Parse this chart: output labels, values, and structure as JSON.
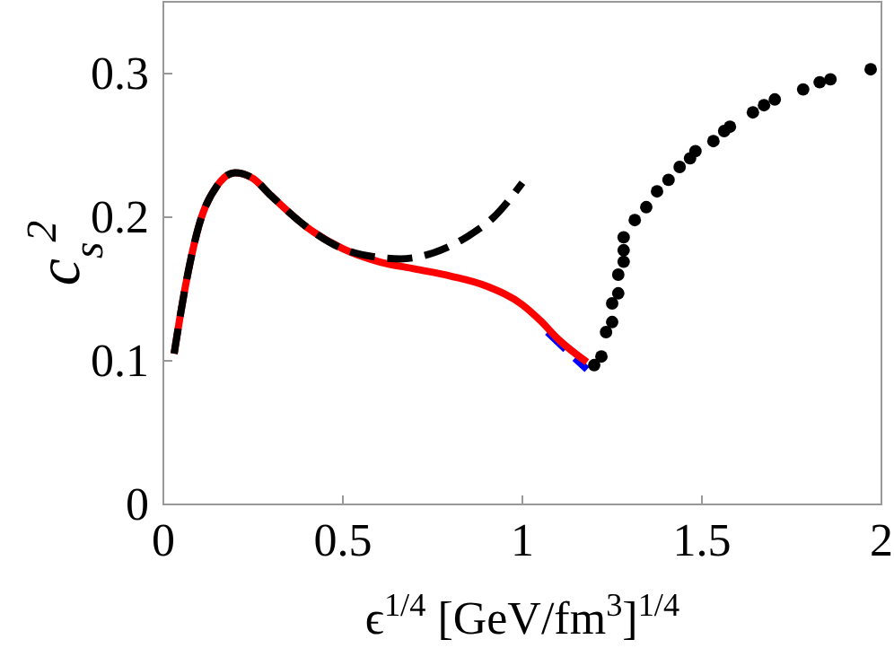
{
  "chart_data": {
    "type": "line",
    "xlabel": "ϵ$^{1/4}$ [GeV/fm$^{3}$]$^{1/4}$",
    "ylabel": "c$_{s}$$^{2}$",
    "xlim": [
      0,
      2
    ],
    "ylim": [
      0,
      0.35
    ],
    "xticks": [
      0,
      0.5,
      1,
      1.5,
      2
    ],
    "yticks": [
      0,
      0.1,
      0.2,
      0.3
    ],
    "grid": false,
    "series": [
      {
        "type": "line",
        "color": "#0000ff",
        "line_style": "dashed",
        "x": [
          1.07,
          1.12,
          1.18
        ],
        "values": [
          0.12,
          0.108,
          0.094
        ]
      },
      {
        "color": "#ff0000",
        "line_style": "solid",
        "x": [
          0.03,
          0.06,
          0.1,
          0.15,
          0.2,
          0.25,
          0.3,
          0.4,
          0.5,
          0.6,
          0.7,
          0.8,
          0.9,
          1.0,
          1.05,
          1.1,
          1.18
        ],
        "values": [
          0.105,
          0.15,
          0.195,
          0.222,
          0.231,
          0.227,
          0.215,
          0.193,
          0.178,
          0.169,
          0.164,
          0.159,
          0.152,
          0.139,
          0.128,
          0.115,
          0.099
        ]
      },
      {
        "type": "line",
        "color": "#000000",
        "line_style": "dashed",
        "x": [
          0.03,
          0.06,
          0.1,
          0.15,
          0.2,
          0.25,
          0.3,
          0.4,
          0.5,
          0.6,
          0.66,
          0.75,
          0.85,
          0.92,
          1.0
        ],
        "values": [
          0.105,
          0.15,
          0.195,
          0.222,
          0.231,
          0.227,
          0.215,
          0.193,
          0.178,
          0.172,
          0.171,
          0.175,
          0.187,
          0.2,
          0.224
        ]
      },
      {
        "type": "scatter",
        "color": "#000000",
        "marker": "circle",
        "x": [
          1.2,
          1.22,
          1.233,
          1.25,
          1.25,
          1.267,
          1.267,
          1.282,
          1.282,
          1.282,
          1.313,
          1.345,
          1.375,
          1.407,
          1.438,
          1.467,
          1.482,
          1.532,
          1.562,
          1.578,
          1.642,
          1.673,
          1.703,
          1.782,
          1.828,
          1.858,
          1.97
        ],
        "values": [
          0.097,
          0.103,
          0.12,
          0.127,
          0.14,
          0.147,
          0.16,
          0.169,
          0.177,
          0.186,
          0.198,
          0.207,
          0.218,
          0.226,
          0.235,
          0.241,
          0.246,
          0.253,
          0.26,
          0.263,
          0.273,
          0.278,
          0.282,
          0.289,
          0.294,
          0.296,
          0.303
        ]
      }
    ]
  }
}
